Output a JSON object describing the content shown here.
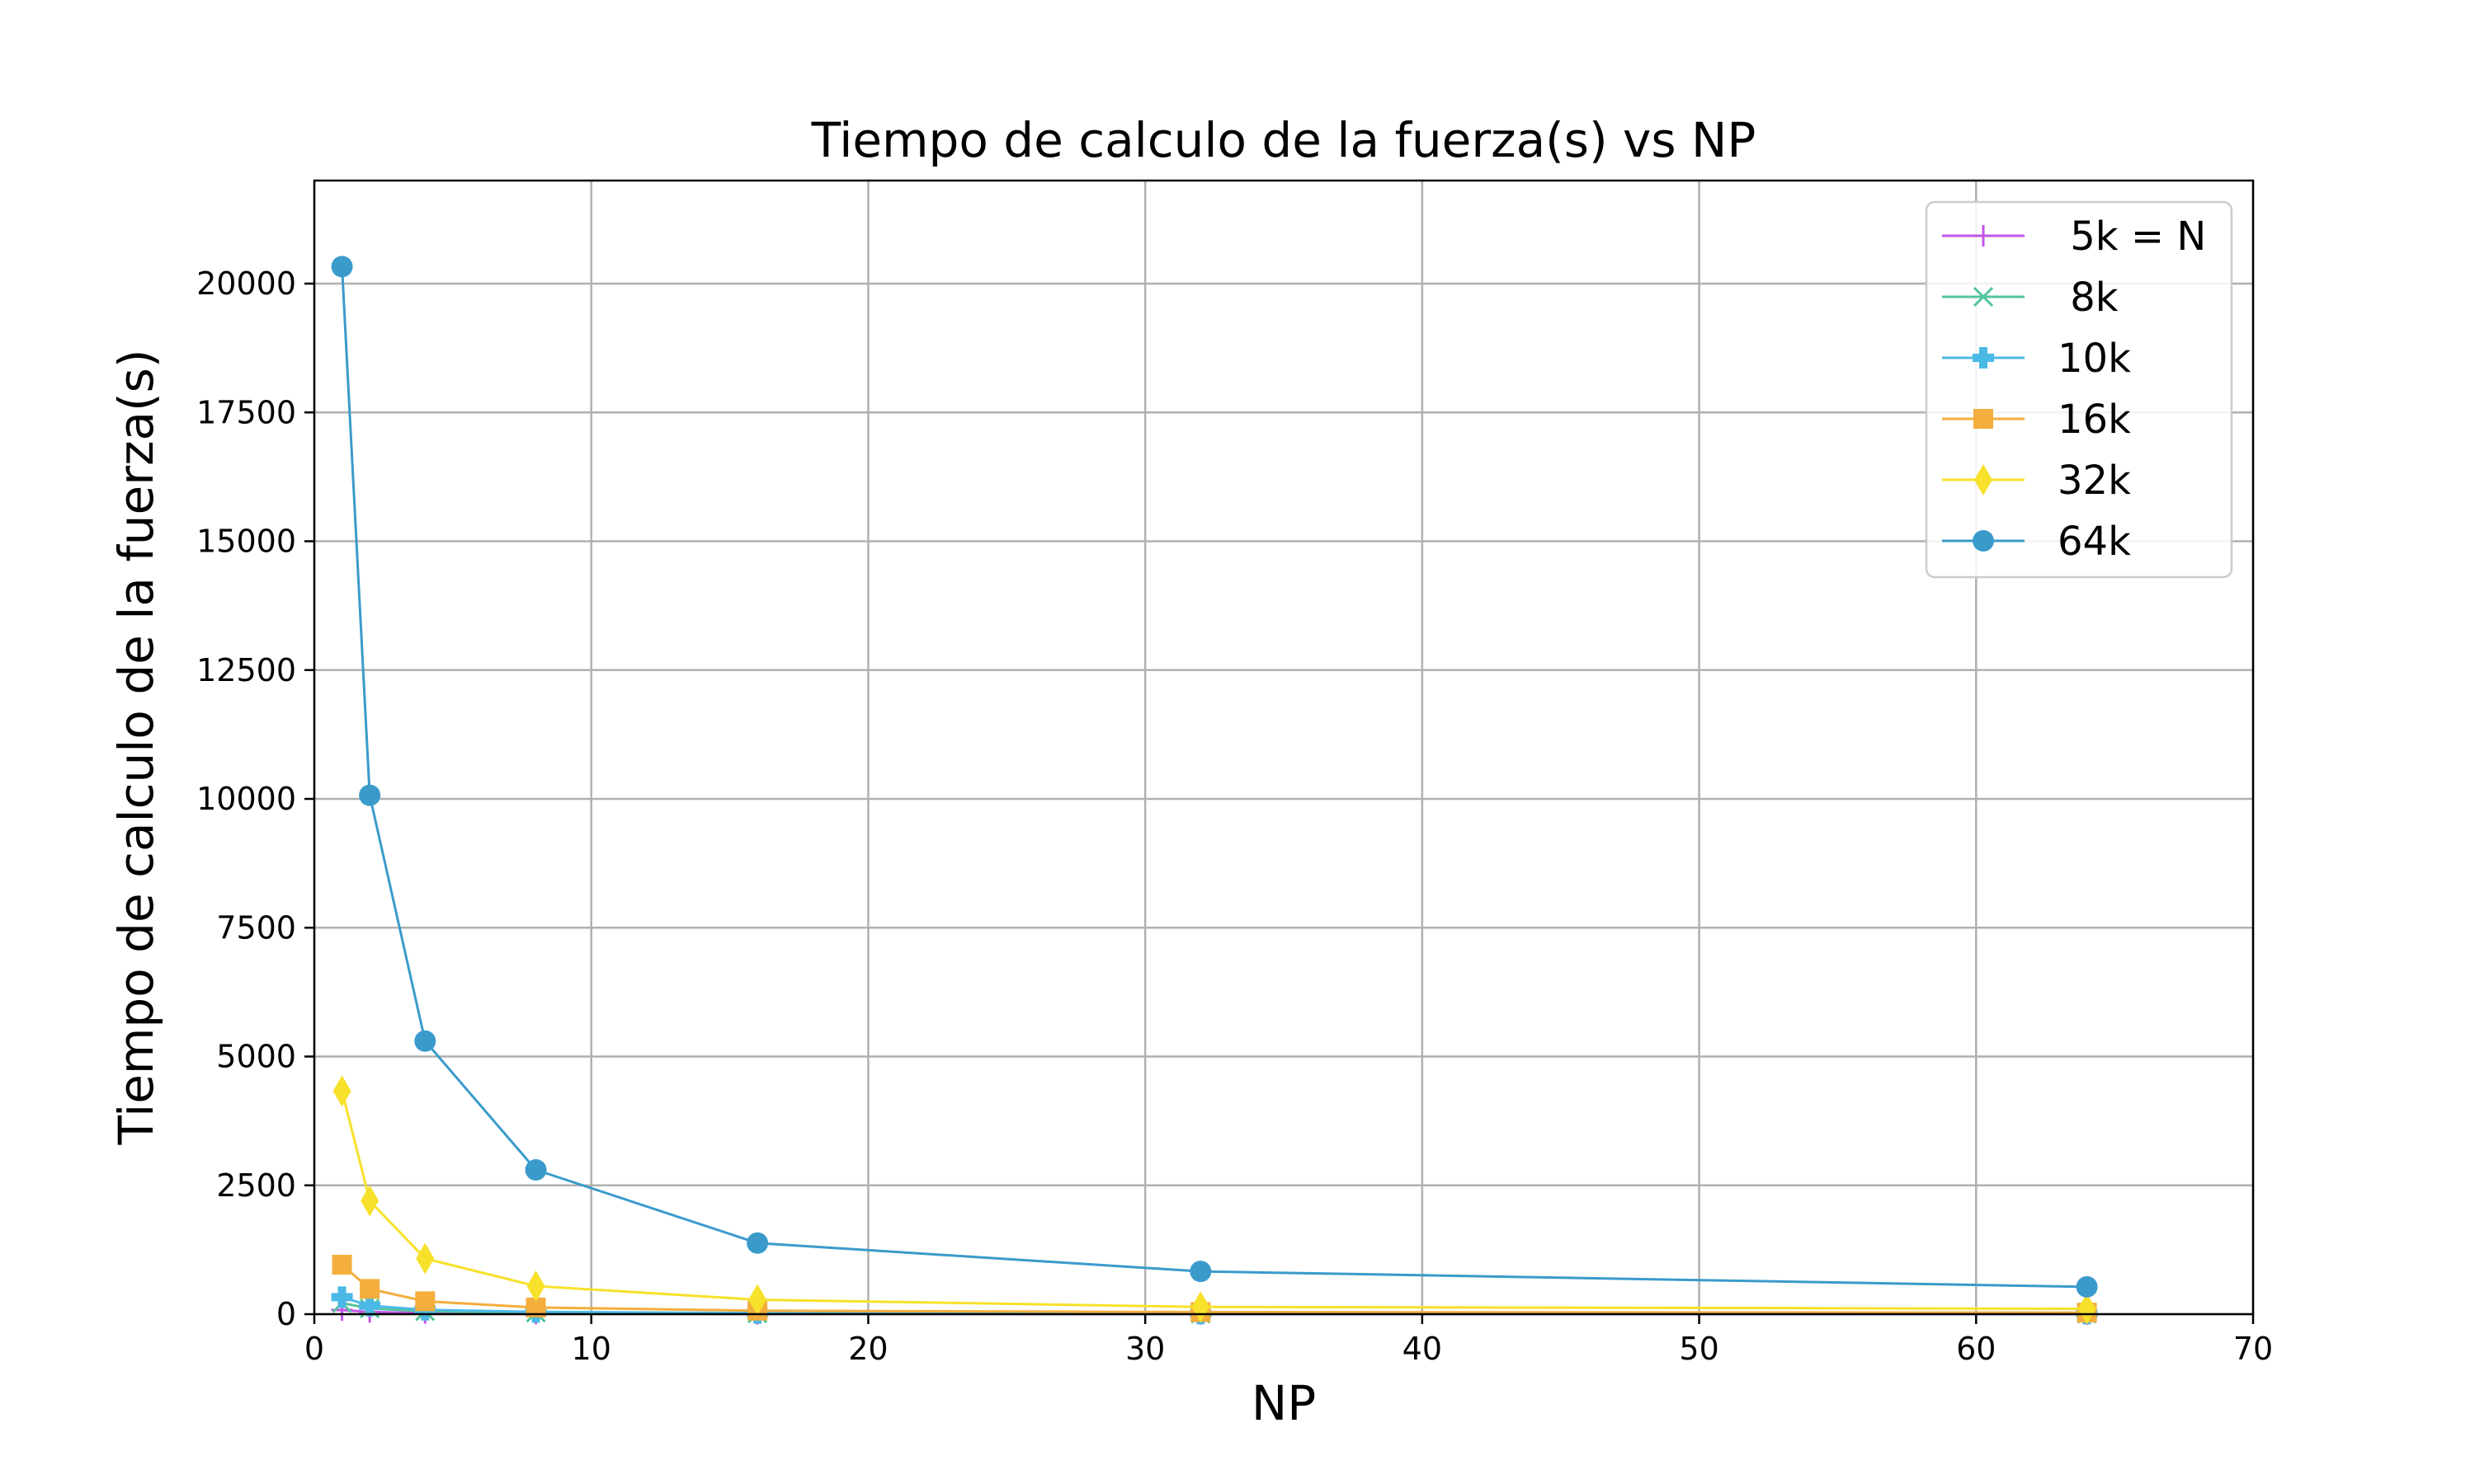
{
  "chart_data": {
    "type": "line",
    "title": "Tiempo de calculo de la fuerza(s) vs NP",
    "xlabel": "NP",
    "ylabel": "Tiempo de calculo de la fuerza(s)",
    "xlim": [
      0,
      70
    ],
    "ylim": [
      0,
      22000
    ],
    "xticks": [
      0,
      10,
      20,
      30,
      40,
      50,
      60,
      70
    ],
    "yticks": [
      0,
      2500,
      5000,
      7500,
      10000,
      12500,
      15000,
      17500,
      20000
    ],
    "grid": true,
    "legend_position": "top-right",
    "x": [
      1,
      2,
      4,
      8,
      16,
      32,
      64
    ],
    "series": [
      {
        "name": " 5k = N",
        "marker": "plus",
        "color": "#c355e8",
        "values": [
          80,
          42,
          22,
          12,
          6,
          4,
          3
        ]
      },
      {
        "name": " 8k",
        "marker": "x",
        "color": "#52c49a",
        "values": [
          215,
          110,
          56,
          29,
          15,
          9,
          7
        ]
      },
      {
        "name": "10k",
        "marker": "plus-filled",
        "color": "#4bb9e6",
        "values": [
          330,
          165,
          85,
          44,
          22,
          13,
          10
        ]
      },
      {
        "name": "16k",
        "marker": "square",
        "color": "#f3ae3d",
        "values": [
          960,
          490,
          250,
          130,
          68,
          40,
          30
        ]
      },
      {
        "name": "32k",
        "marker": "diamond",
        "color": "#f7e12a",
        "values": [
          4330,
          2200,
          1080,
          545,
          280,
          140,
          105
        ]
      },
      {
        "name": "64k",
        "marker": "circle",
        "color": "#3a9bcb",
        "values": [
          20330,
          10070,
          5300,
          2800,
          1380,
          830,
          530
        ]
      }
    ]
  }
}
